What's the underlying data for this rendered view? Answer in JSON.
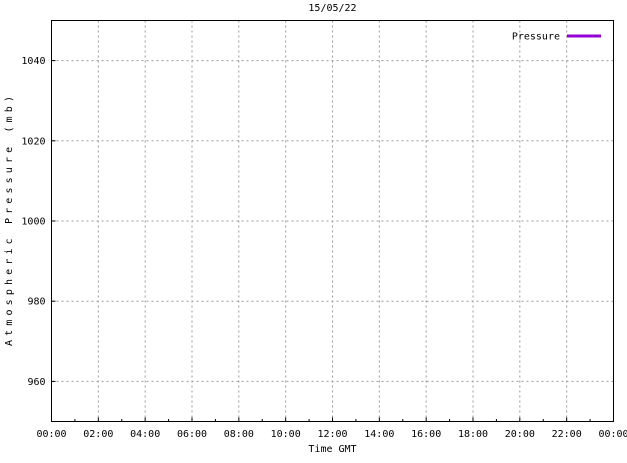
{
  "chart_data": {
    "type": "line",
    "title": "15/05/22",
    "xlabel": "Time GMT",
    "ylabel": "Atmospheric Pressure (mb)",
    "x_tick_labels": [
      "00:00",
      "02:00",
      "04:00",
      "06:00",
      "08:00",
      "10:00",
      "12:00",
      "14:00",
      "16:00",
      "18:00",
      "20:00",
      "22:00",
      "00:00"
    ],
    "x_minor_ticks_per_interval": 1,
    "y_ticks": [
      960,
      980,
      1000,
      1020,
      1040
    ],
    "ylim": [
      950,
      1050
    ],
    "grid": true,
    "legend_position": "top-right",
    "legend": {
      "entries": [
        {
          "label": "Pressure",
          "color": "#9400d3"
        }
      ]
    },
    "series": [
      {
        "name": "Pressure",
        "color": "#9400d3",
        "x": [],
        "values": []
      }
    ],
    "colors": {
      "axis": "#000000",
      "grid": "#999999",
      "text": "#000000",
      "background": "#ffffff"
    }
  }
}
